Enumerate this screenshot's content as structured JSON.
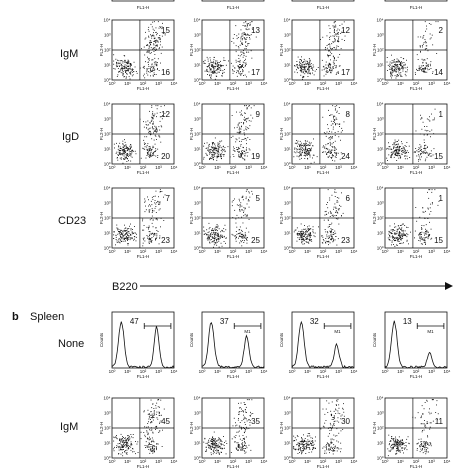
{
  "axis_texts": {
    "x": "FL1-H",
    "y": "FL2-H",
    "counts": "Counts"
  },
  "ticks": [
    "10⁰",
    "10¹",
    "10²",
    "10³",
    "10⁴"
  ],
  "panel_a": {
    "rows": [
      {
        "label": "IgM",
        "upper": [
          "15",
          "13",
          "12",
          "2"
        ],
        "lower": [
          "16",
          "17",
          "17",
          "14"
        ]
      },
      {
        "label": "IgD",
        "upper": [
          "12",
          "9",
          "8",
          "1"
        ],
        "lower": [
          "20",
          "19",
          "24",
          "15"
        ]
      },
      {
        "label": "CD23",
        "upper": [
          "7",
          "5",
          "6",
          "1"
        ],
        "lower": [
          "23",
          "25",
          "23",
          "15"
        ]
      }
    ],
    "axis_label": "B220"
  },
  "panel_b": {
    "letter": "b",
    "title": "Spleen",
    "hist_row": {
      "label": "None",
      "values": [
        "47",
        "37",
        "32",
        "13"
      ],
      "gate_label": "M1"
    },
    "dot_row": {
      "label": "IgM",
      "values": [
        "45",
        "35",
        "30",
        "11"
      ]
    }
  }
}
